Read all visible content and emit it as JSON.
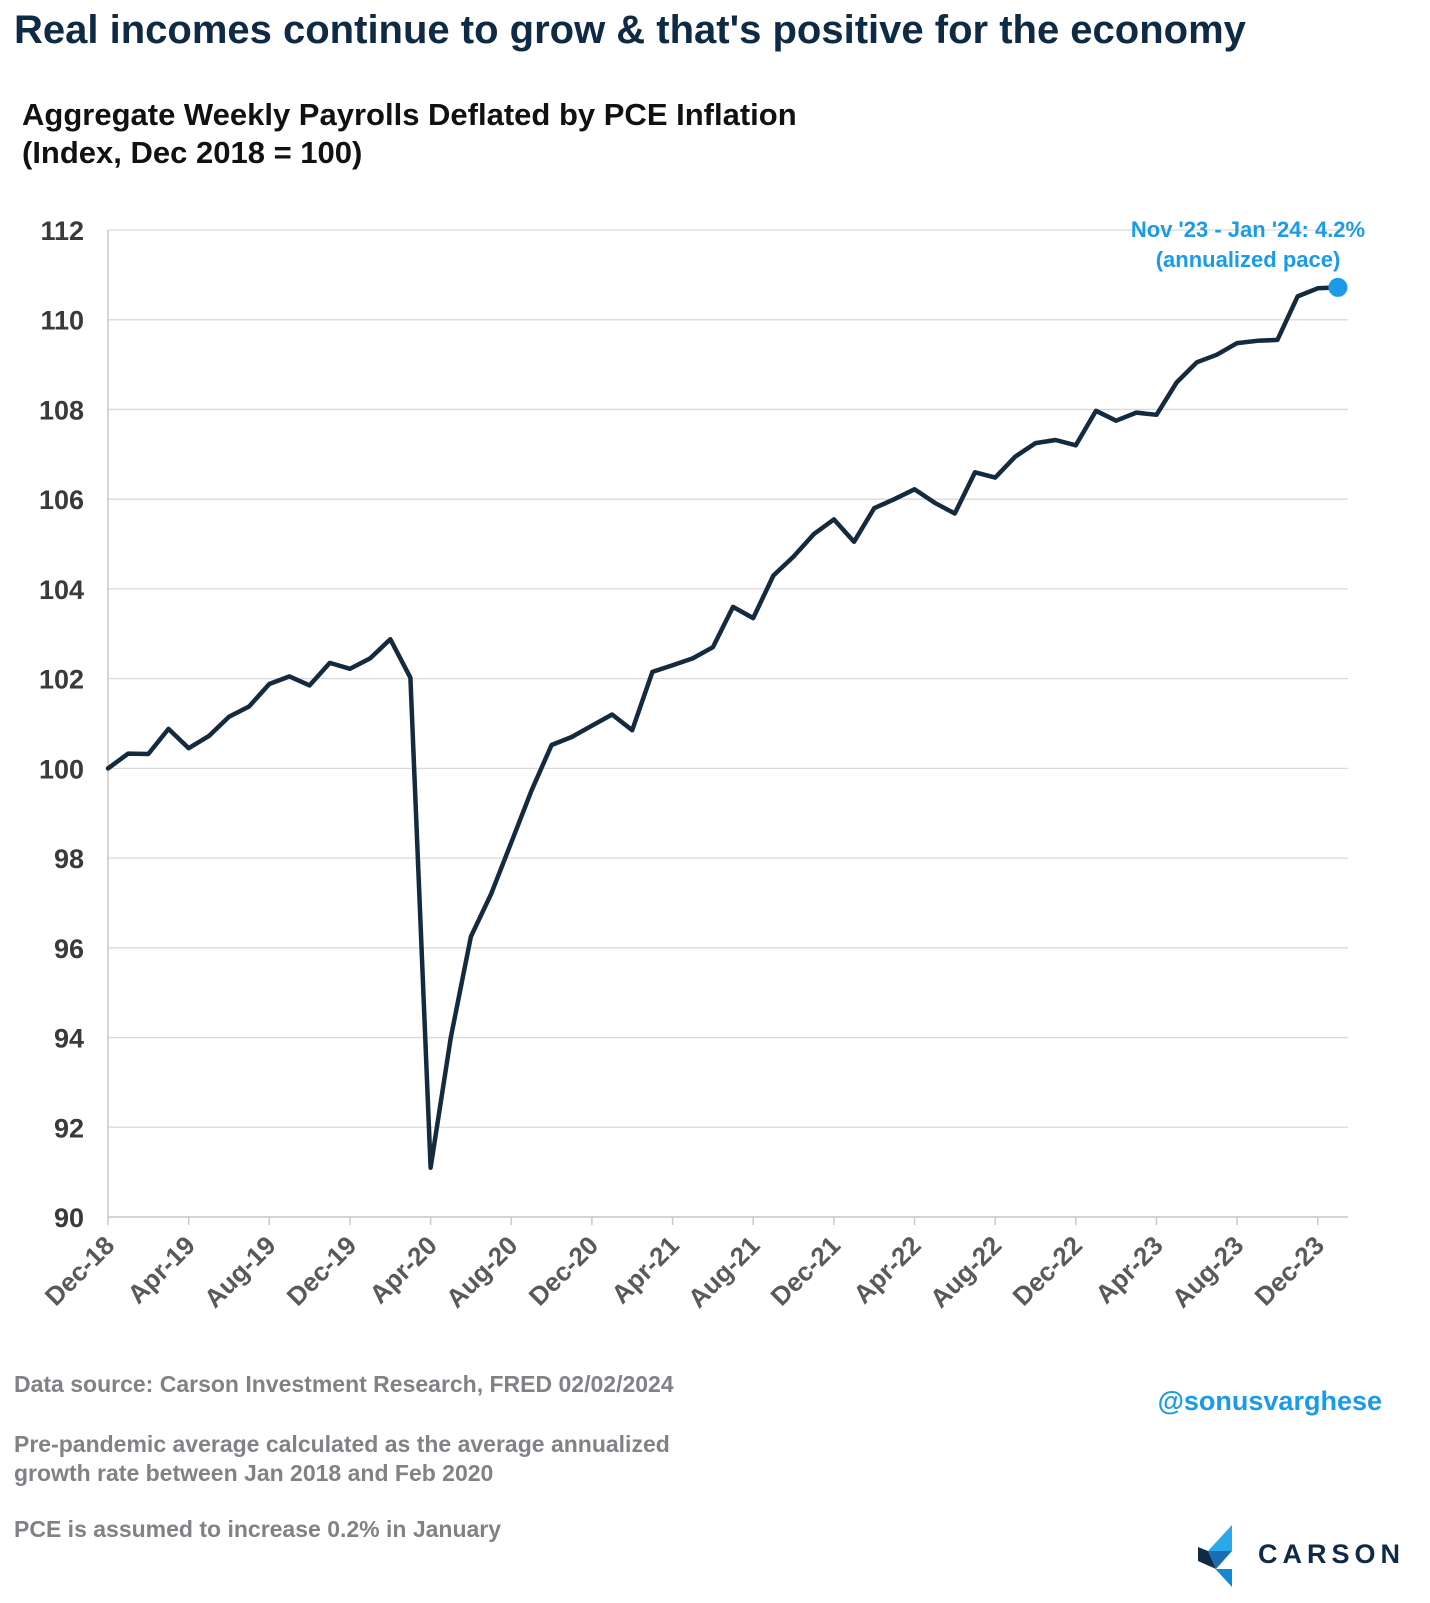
{
  "headline": "Real incomes continue to grow & that's positive for the economy",
  "chart_data": {
    "type": "line",
    "title": "Aggregate Weekly Payrolls Deflated by PCE Inflation",
    "subtitle": "(Index, Dec 2018 = 100)",
    "ylim": [
      90,
      112
    ],
    "yticks": [
      90,
      92,
      94,
      96,
      98,
      100,
      102,
      104,
      106,
      108,
      110,
      112
    ],
    "grid": true,
    "x_tick_labels": [
      "Dec-18",
      "Apr-19",
      "Aug-19",
      "Dec-19",
      "Apr-20",
      "Aug-20",
      "Dec-20",
      "Apr-21",
      "Aug-21",
      "Dec-21",
      "Apr-22",
      "Aug-22",
      "Dec-22",
      "Apr-23",
      "Aug-23",
      "Dec-23"
    ],
    "x_start": "Dec-18",
    "series": [
      {
        "color": "#132a3f",
        "values": [
          100.0,
          100.33,
          100.32,
          100.88,
          100.45,
          100.72,
          101.15,
          101.38,
          101.88,
          102.05,
          101.85,
          102.35,
          102.22,
          102.45,
          102.88,
          102.02,
          91.1,
          94.0,
          96.25,
          97.2,
          98.35,
          99.5,
          100.52,
          100.7,
          100.95,
          101.2,
          100.85,
          102.15,
          102.3,
          102.45,
          102.7,
          103.6,
          103.35,
          104.3,
          104.72,
          105.22,
          105.55,
          105.05,
          105.8,
          106.0,
          106.22,
          105.92,
          105.68,
          106.6,
          106.48,
          106.95,
          107.25,
          107.32,
          107.2,
          107.97,
          107.75,
          107.93,
          107.88,
          108.6,
          109.05,
          109.22,
          109.48,
          109.53,
          109.55,
          110.52,
          110.7,
          110.72
        ]
      }
    ],
    "annotation": {
      "line1": "Nov '23 - Jan '24: 4.2%",
      "line2": "(annualized pace)",
      "color": "#1a9bea"
    }
  },
  "footer": {
    "source": "Data source: Carson Investment Research, FRED   02/02/2024",
    "note1a": "Pre-pandemic average calculated as the average annualized",
    "note1b": "growth rate between Jan 2018 and Feb 2020",
    "note2": "PCE is assumed to increase 0.2% in January",
    "handle": "@sonusvarghese"
  },
  "logo": {
    "text": "CARSON"
  }
}
